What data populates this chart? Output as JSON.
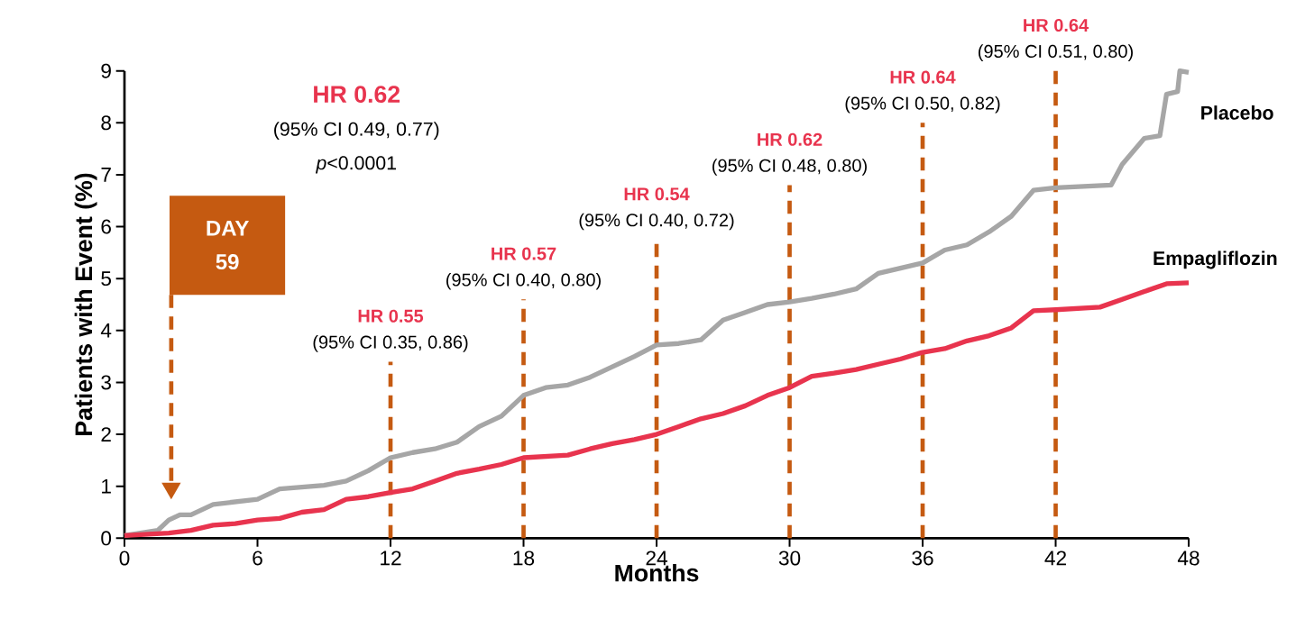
{
  "chart_data": {
    "type": "line",
    "xlabel": "Months",
    "ylabel": "Patients with Event (%)",
    "xlim": [
      0,
      48
    ],
    "ylim": [
      0,
      9
    ],
    "xticks": [
      0,
      6,
      12,
      18,
      24,
      30,
      36,
      42,
      48
    ],
    "yticks": [
      0,
      1,
      2,
      3,
      4,
      5,
      6,
      7,
      8,
      9
    ],
    "grid": false,
    "legend": false,
    "marker": "none",
    "line_style": "solid",
    "series": [
      {
        "name": "Placebo",
        "color": "#a6a6a6",
        "x": [
          0,
          1.5,
          2,
          2.5,
          3,
          4,
          6,
          7,
          9,
          10,
          11,
          12,
          13,
          14,
          15,
          16,
          17,
          18,
          19,
          20,
          21,
          22,
          23,
          24,
          25,
          26,
          27,
          28,
          29,
          30,
          31,
          32,
          33,
          34,
          35,
          36,
          37,
          38,
          39,
          40,
          41,
          42,
          44.5,
          45,
          46,
          46.7,
          47,
          47.5,
          47.6,
          48
        ],
        "values": [
          0.05,
          0.15,
          0.35,
          0.45,
          0.45,
          0.65,
          0.75,
          0.95,
          1.02,
          1.1,
          1.3,
          1.55,
          1.65,
          1.72,
          1.85,
          2.15,
          2.35,
          2.75,
          2.9,
          2.95,
          3.1,
          3.3,
          3.5,
          3.72,
          3.75,
          3.82,
          4.2,
          4.35,
          4.5,
          4.55,
          4.62,
          4.7,
          4.8,
          5.1,
          5.2,
          5.3,
          5.55,
          5.65,
          5.9,
          6.2,
          6.7,
          6.75,
          6.8,
          7.2,
          7.7,
          7.75,
          8.55,
          8.6,
          9.0,
          8.97
        ]
      },
      {
        "name": "Empagliflozin",
        "color": "#e8344e",
        "x": [
          0,
          2,
          3,
          4,
          5,
          6,
          7,
          8,
          9,
          10,
          11,
          12,
          13,
          14,
          15,
          16,
          17,
          18,
          20,
          21,
          22,
          23,
          24,
          25,
          26,
          27,
          28,
          29,
          30,
          31,
          32,
          33,
          34,
          35,
          36,
          37,
          38,
          39,
          40,
          41,
          42,
          44,
          45,
          46,
          47,
          48
        ],
        "values": [
          0.05,
          0.1,
          0.15,
          0.25,
          0.28,
          0.35,
          0.38,
          0.5,
          0.55,
          0.75,
          0.8,
          0.88,
          0.95,
          1.1,
          1.25,
          1.33,
          1.42,
          1.55,
          1.6,
          1.72,
          1.82,
          1.9,
          2.0,
          2.15,
          2.3,
          2.4,
          2.55,
          2.75,
          2.9,
          3.12,
          3.18,
          3.25,
          3.35,
          3.45,
          3.58,
          3.65,
          3.8,
          3.9,
          4.05,
          4.38,
          4.4,
          4.45,
          4.6,
          4.75,
          4.9,
          4.92
        ]
      }
    ],
    "ref_lines": [
      {
        "axis": "x",
        "value": 12,
        "color": "#c55a11",
        "line_style": "dashed"
      },
      {
        "axis": "x",
        "value": 18,
        "color": "#c55a11",
        "line_style": "dashed"
      },
      {
        "axis": "x",
        "value": 24,
        "color": "#c55a11",
        "line_style": "dashed"
      },
      {
        "axis": "x",
        "value": 30,
        "color": "#c55a11",
        "line_style": "dashed"
      },
      {
        "axis": "x",
        "value": 36,
        "color": "#c55a11",
        "line_style": "dashed"
      },
      {
        "axis": "x",
        "value": 42,
        "color": "#c55a11",
        "line_style": "dashed"
      }
    ],
    "annotations": [
      "HR 0.62",
      "(95% CI 0.49, 0.77)",
      "*p*<0.0001",
      "DAY 59",
      {
        "text": "HR 0.55",
        "x": 12,
        "y": 3.4
      },
      {
        "text": "(95% CI 0.35, 0.86)",
        "x": 12,
        "y": 3.4
      },
      {
        "text": "HR 0.57",
        "x": 18,
        "y": 4.6
      },
      {
        "text": "(95% CI 0.40, 0.80)",
        "x": 18,
        "y": 4.6
      },
      {
        "text": "HR 0.54",
        "x": 24,
        "y": 5.75
      },
      {
        "text": "(95% CI 0.40, 0.72)",
        "x": 24,
        "y": 5.75
      },
      {
        "text": "HR 0.62",
        "x": 30,
        "y": 6.8
      },
      {
        "text": "(95% CI 0.48, 0.80)",
        "x": 30,
        "y": 6.8
      },
      {
        "text": "HR 0.64",
        "x": 36,
        "y": 8.0
      },
      {
        "text": "(95% CI 0.50, 0.82)",
        "x": 36,
        "y": 8.0
      },
      {
        "text": "HR 0.64",
        "x": 42,
        "y": 9.0
      },
      {
        "text": "(95% CI 0.51, 0.80)",
        "x": 42,
        "y": 9.0
      }
    ]
  }
}
